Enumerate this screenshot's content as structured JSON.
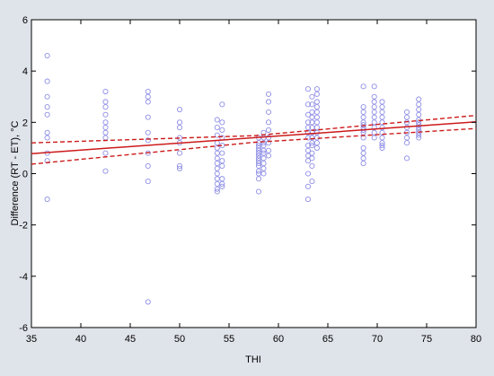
{
  "chart_data": {
    "type": "scatter",
    "xlabel": "THI",
    "ylabel": "Difference (RT - ET), °C",
    "xlim": [
      35,
      80
    ],
    "ylim": [
      -6,
      6
    ],
    "x_ticks": [
      "35",
      "40",
      "45",
      "50",
      "55",
      "60",
      "65",
      "70",
      "75",
      "80"
    ],
    "y_ticks": [
      "6",
      "4",
      "2",
      "0",
      "-2",
      "-4",
      "-6"
    ],
    "grid": false,
    "colors": {
      "points": "#8f8fe6",
      "fit": "#cc1a1a",
      "ci": "#cc1a1a",
      "background": "#dfe3ea",
      "plot_area": "#ffffff"
    },
    "fit_line": {
      "x": [
        35,
        80
      ],
      "y": [
        0.78,
        2.02
      ]
    },
    "ci_upper": {
      "x": [
        35,
        57.5,
        80
      ],
      "y": [
        1.2,
        1.48,
        2.27
      ]
    },
    "ci_lower": {
      "x": [
        35,
        57.5,
        80
      ],
      "y": [
        0.37,
        1.22,
        1.76
      ]
    },
    "points": {
      "x": [
        36.6,
        36.6,
        36.6,
        36.6,
        36.6,
        36.6,
        36.6,
        36.6,
        36.6,
        36.6,
        42.5,
        42.5,
        42.5,
        42.5,
        42.5,
        42.5,
        42.5,
        42.5,
        42.5,
        42.5,
        46.8,
        46.8,
        46.8,
        46.8,
        46.8,
        46.8,
        46.8,
        46.8,
        46.8,
        46.8,
        50,
        50,
        50,
        50,
        50,
        50,
        50,
        50,
        53.8,
        53.8,
        53.8,
        53.8,
        53.8,
        53.8,
        53.8,
        53.8,
        53.8,
        53.8,
        53.8,
        53.8,
        53.8,
        53.8,
        54.3,
        54.3,
        54.3,
        54.3,
        54.3,
        54.3,
        54.3,
        54.3,
        54.3,
        54.3,
        54.3,
        58,
        58,
        58,
        58,
        58,
        58,
        58,
        58,
        58,
        58,
        58,
        58,
        58,
        58,
        58,
        58.5,
        58.5,
        58.5,
        58.5,
        58.5,
        58.5,
        58.5,
        58.5,
        58.5,
        58.5,
        59,
        59,
        59,
        59,
        59,
        59,
        59,
        59,
        59,
        63,
        63,
        63,
        63,
        63,
        63,
        63,
        63,
        63,
        63,
        63,
        63,
        63,
        63,
        63.4,
        63.4,
        63.4,
        63.4,
        63.4,
        63.4,
        63.4,
        63.4,
        63.4,
        63.4,
        63.4,
        63.4,
        63.4,
        63.4,
        63.9,
        63.9,
        63.9,
        63.9,
        63.9,
        63.9,
        63.9,
        63.9,
        63.9,
        63.9,
        63.9,
        63.9,
        68.6,
        68.6,
        68.6,
        68.6,
        68.6,
        68.6,
        68.6,
        68.6,
        68.6,
        68.6,
        68.6,
        68.6,
        68.6,
        68.6,
        69.7,
        69.7,
        69.7,
        69.7,
        69.7,
        69.7,
        69.7,
        69.7,
        69.7,
        69.7,
        70.5,
        70.5,
        70.5,
        70.5,
        70.5,
        70.5,
        70.5,
        70.5,
        70.5,
        70.5,
        70.5,
        73,
        73,
        73,
        73,
        73,
        73,
        73,
        73,
        74.2,
        74.2,
        74.2,
        74.2,
        74.2,
        74.2,
        74.2,
        74.2,
        74.2,
        74.2,
        74.2,
        74.2
      ],
      "y": [
        4.6,
        3.6,
        3.0,
        2.6,
        2.3,
        1.6,
        1.4,
        0.8,
        0.5,
        -1.0,
        3.2,
        2.8,
        2.6,
        2.3,
        2.0,
        1.8,
        1.6,
        1.4,
        0.8,
        0.1,
        3.2,
        3.0,
        2.8,
        2.2,
        1.6,
        1.3,
        0.8,
        0.3,
        -0.3,
        -5.0,
        2.5,
        2.0,
        1.8,
        1.4,
        1.2,
        0.8,
        0.3,
        0.2,
        2.1,
        1.8,
        1.5,
        1.2,
        1.0,
        0.8,
        0.6,
        0.4,
        0.2,
        0.0,
        -0.2,
        -0.4,
        -0.6,
        -0.7,
        2.7,
        2.0,
        1.7,
        1.4,
        1.1,
        0.8,
        0.5,
        0.3,
        -0.2,
        -0.4,
        -0.5,
        1.4,
        1.2,
        1.1,
        1.0,
        0.9,
        0.8,
        0.7,
        0.6,
        0.5,
        0.4,
        0.3,
        0.1,
        0.0,
        -0.2,
        -0.7,
        1.6,
        1.4,
        1.2,
        1.1,
        0.9,
        0.8,
        0.6,
        0.4,
        0.2,
        0.0,
        3.1,
        2.8,
        2.4,
        2.0,
        1.7,
        1.4,
        1.2,
        0.9,
        0.7,
        3.3,
        2.7,
        2.3,
        2.0,
        1.8,
        1.6,
        1.4,
        1.1,
        0.9,
        0.7,
        0.5,
        0.0,
        -0.5,
        -1.0,
        3.0,
        2.7,
        2.4,
        2.2,
        2.0,
        1.8,
        1.6,
        1.4,
        1.2,
        1.1,
        0.8,
        0.6,
        0.3,
        -0.3,
        3.3,
        3.1,
        2.8,
        2.6,
        2.4,
        2.2,
        2.0,
        1.8,
        1.6,
        1.4,
        1.2,
        1.0,
        3.4,
        2.6,
        2.4,
        2.2,
        2.0,
        1.9,
        1.8,
        1.7,
        1.6,
        1.4,
        1.0,
        0.8,
        0.6,
        0.4,
        3.4,
        3.0,
        2.8,
        2.6,
        2.4,
        2.2,
        2.0,
        1.8,
        1.6,
        1.4,
        2.8,
        2.6,
        2.4,
        2.2,
        2.0,
        1.8,
        1.6,
        1.4,
        1.2,
        1.0,
        1.1,
        2.4,
        2.2,
        2.0,
        1.8,
        1.6,
        1.4,
        1.2,
        0.6,
        2.9,
        2.7,
        2.5,
        2.3,
        2.1,
        2.0,
        1.9,
        1.8,
        1.7,
        1.6,
        1.5,
        1.4
      ]
    }
  }
}
